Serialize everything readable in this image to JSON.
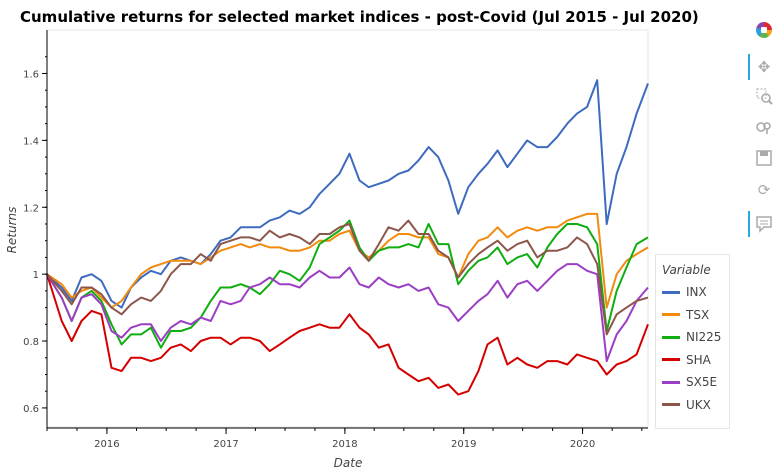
{
  "chart_data": {
    "type": "line",
    "title": "Cumulative returns for selected market indices - post-Covid (Jul 2015 - Jul 2020)",
    "xlabel": "Date",
    "ylabel": "Returns",
    "ylim": [
      0.54,
      1.73
    ],
    "xlim": [
      "2015-07-01",
      "2020-07-20"
    ],
    "x_ticks": [
      "2016",
      "2017",
      "2018",
      "2019",
      "2020"
    ],
    "y_ticks": [
      "0.6",
      "0.8",
      "1",
      "1.2",
      "1.4",
      "1.6"
    ],
    "y_tick_values": [
      0.6,
      0.8,
      1.0,
      1.2,
      1.4,
      1.6
    ],
    "grid": false,
    "legend_position": "right",
    "legend_title": "Variable",
    "x": [
      "2015-07",
      "2015-08",
      "2015-09",
      "2015-10",
      "2015-11",
      "2015-12",
      "2016-01",
      "2016-02",
      "2016-03",
      "2016-04",
      "2016-05",
      "2016-06",
      "2016-07",
      "2016-08",
      "2016-09",
      "2016-10",
      "2016-11",
      "2016-12",
      "2017-01",
      "2017-02",
      "2017-03",
      "2017-04",
      "2017-05",
      "2017-06",
      "2017-07",
      "2017-08",
      "2017-09",
      "2017-10",
      "2017-11",
      "2017-12",
      "2018-01",
      "2018-02",
      "2018-03",
      "2018-04",
      "2018-05",
      "2018-06",
      "2018-07",
      "2018-08",
      "2018-09",
      "2018-10",
      "2018-11",
      "2018-12",
      "2019-01",
      "2019-02",
      "2019-03",
      "2019-04",
      "2019-05",
      "2019-06",
      "2019-07",
      "2019-08",
      "2019-09",
      "2019-10",
      "2019-11",
      "2019-12",
      "2020-01",
      "2020-02",
      "2020-03",
      "2020-04",
      "2020-05",
      "2020-06",
      "2020-07"
    ],
    "series": [
      {
        "name": "INX",
        "color": "#3e6bbf",
        "values": [
          1.0,
          0.96,
          0.92,
          0.99,
          1.0,
          0.98,
          0.92,
          0.9,
          0.96,
          0.99,
          1.01,
          1.0,
          1.04,
          1.05,
          1.04,
          1.03,
          1.06,
          1.1,
          1.11,
          1.14,
          1.14,
          1.14,
          1.16,
          1.17,
          1.19,
          1.18,
          1.2,
          1.24,
          1.27,
          1.3,
          1.36,
          1.28,
          1.26,
          1.27,
          1.28,
          1.3,
          1.31,
          1.34,
          1.38,
          1.35,
          1.28,
          1.18,
          1.26,
          1.3,
          1.33,
          1.37,
          1.32,
          1.36,
          1.4,
          1.38,
          1.38,
          1.41,
          1.45,
          1.48,
          1.5,
          1.58,
          1.15,
          1.3,
          1.38,
          1.48,
          1.57
        ]
      },
      {
        "name": "TSX",
        "color": "#f28a0e",
        "values": [
          1.0,
          0.97,
          0.93,
          0.95,
          0.96,
          0.93,
          0.9,
          0.92,
          0.96,
          1.0,
          1.02,
          1.03,
          1.04,
          1.04,
          1.04,
          1.03,
          1.05,
          1.07,
          1.08,
          1.09,
          1.08,
          1.09,
          1.08,
          1.08,
          1.07,
          1.07,
          1.08,
          1.1,
          1.1,
          1.12,
          1.13,
          1.07,
          1.05,
          1.07,
          1.1,
          1.12,
          1.12,
          1.11,
          1.11,
          1.06,
          1.05,
          0.99,
          1.06,
          1.1,
          1.11,
          1.14,
          1.11,
          1.13,
          1.14,
          1.13,
          1.14,
          1.14,
          1.16,
          1.17,
          1.18,
          1.18,
          0.9,
          1.0,
          1.04,
          1.06,
          1.08
        ]
      },
      {
        "name": "NI225",
        "color": "#10ad10",
        "values": [
          1.0,
          0.93,
          0.86,
          0.93,
          0.95,
          0.92,
          0.85,
          0.79,
          0.82,
          0.82,
          0.84,
          0.78,
          0.83,
          0.83,
          0.84,
          0.87,
          0.92,
          0.96,
          0.96,
          0.97,
          0.96,
          0.94,
          0.97,
          1.01,
          1.0,
          0.98,
          1.02,
          1.09,
          1.11,
          1.13,
          1.16,
          1.08,
          1.04,
          1.07,
          1.08,
          1.08,
          1.09,
          1.08,
          1.15,
          1.09,
          1.09,
          0.97,
          1.01,
          1.04,
          1.05,
          1.08,
          1.03,
          1.05,
          1.06,
          1.02,
          1.08,
          1.12,
          1.15,
          1.15,
          1.14,
          1.09,
          0.83,
          0.95,
          1.02,
          1.09,
          1.11
        ]
      },
      {
        "name": "SHA",
        "color": "#d40000",
        "values": [
          1.0,
          0.86,
          0.8,
          0.86,
          0.89,
          0.88,
          0.72,
          0.71,
          0.75,
          0.75,
          0.74,
          0.75,
          0.78,
          0.79,
          0.77,
          0.8,
          0.81,
          0.81,
          0.79,
          0.81,
          0.81,
          0.8,
          0.77,
          0.79,
          0.81,
          0.83,
          0.84,
          0.85,
          0.84,
          0.84,
          0.88,
          0.84,
          0.82,
          0.78,
          0.79,
          0.72,
          0.7,
          0.68,
          0.69,
          0.66,
          0.67,
          0.64,
          0.65,
          0.71,
          0.79,
          0.81,
          0.73,
          0.75,
          0.73,
          0.72,
          0.74,
          0.74,
          0.73,
          0.76,
          0.75,
          0.74,
          0.7,
          0.73,
          0.74,
          0.76,
          0.85
        ]
      },
      {
        "name": "SX5E",
        "color": "#9c3ec4",
        "values": [
          1.0,
          0.93,
          0.86,
          0.93,
          0.94,
          0.91,
          0.83,
          0.81,
          0.84,
          0.85,
          0.85,
          0.8,
          0.84,
          0.86,
          0.85,
          0.87,
          0.86,
          0.92,
          0.91,
          0.92,
          0.96,
          0.97,
          0.99,
          0.97,
          0.97,
          0.96,
          0.99,
          1.01,
          0.99,
          0.99,
          1.02,
          0.97,
          0.96,
          0.99,
          0.97,
          0.96,
          0.97,
          0.95,
          0.96,
          0.91,
          0.9,
          0.86,
          0.89,
          0.92,
          0.94,
          0.98,
          0.93,
          0.97,
          0.98,
          0.95,
          0.98,
          1.01,
          1.03,
          1.03,
          1.01,
          1.0,
          0.74,
          0.82,
          0.86,
          0.92,
          0.96
        ]
      },
      {
        "name": "UKX",
        "color": "#8c564b",
        "values": [
          1.0,
          0.95,
          0.91,
          0.96,
          0.96,
          0.94,
          0.9,
          0.88,
          0.91,
          0.93,
          0.92,
          0.95,
          1.0,
          1.03,
          1.03,
          1.06,
          1.04,
          1.09,
          1.1,
          1.11,
          1.11,
          1.1,
          1.13,
          1.11,
          1.12,
          1.11,
          1.09,
          1.12,
          1.12,
          1.14,
          1.15,
          1.07,
          1.04,
          1.09,
          1.14,
          1.13,
          1.16,
          1.12,
          1.12,
          1.07,
          1.05,
          0.99,
          1.03,
          1.06,
          1.08,
          1.1,
          1.07,
          1.09,
          1.1,
          1.05,
          1.07,
          1.07,
          1.08,
          1.11,
          1.09,
          1.03,
          0.82,
          0.88,
          0.9,
          0.92,
          0.93
        ]
      }
    ]
  },
  "toolbar": {
    "tools": [
      "bokeh-logo-icon",
      "pan-icon",
      "box-zoom-icon",
      "wheel-zoom-icon",
      "save-icon",
      "reset-icon",
      "hover-icon"
    ]
  }
}
